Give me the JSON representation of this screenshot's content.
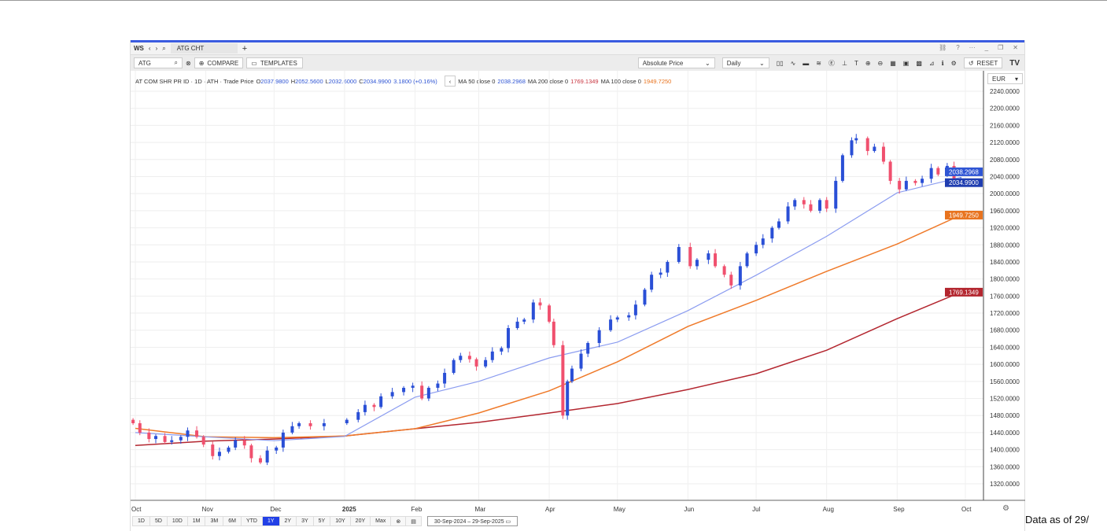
{
  "header": {
    "workspace": "WS",
    "tab": "ATG CHT",
    "new_tab": "+"
  },
  "toolbar": {
    "symbol": "ATG",
    "compare": "COMPARE",
    "templates": "TEMPLATES",
    "price_mode": "Absolute Price",
    "interval": "Daily",
    "reset": "RESET",
    "logo": "TV",
    "currency": "EUR"
  },
  "info": {
    "name": "AT COM SHR PR ID · 1D · ATH · Trade Price",
    "o_label": "O",
    "o": "2037.9800",
    "h_label": "H",
    "h": "2052.5600",
    "l_label": "L",
    "l": "2032.6000",
    "c_label": "C",
    "c": "2034.9900",
    "chg": "3.1800 (+0.16%)",
    "ma50_label": "MA 50 close 0",
    "ma50": "2038.2968",
    "ma200_label": "MA 200 close 0",
    "ma200": "1769.1349",
    "ma100_label": "MA 100 close 0",
    "ma100": "1949.7250"
  },
  "ranges": [
    "1D",
    "5D",
    "10D",
    "1M",
    "3M",
    "6M",
    "YTD",
    "1Y",
    "2Y",
    "3Y",
    "5Y",
    "10Y",
    "20Y",
    "Max"
  ],
  "active_range": "1Y",
  "date_range": "30-Sep-2024  –  29-Sep-2025",
  "footer_note": "Data as of 29/",
  "colors": {
    "up": "#2a4fd6",
    "down": "#f0506e",
    "ma50": "#8b9cf0",
    "ma100": "#ef7a2a",
    "ma200": "#b3262f"
  },
  "chart_data": {
    "type": "candlestick",
    "ylim": [
      1290,
      2260
    ],
    "yticks": [
      2240,
      2200,
      2160,
      2120,
      2080,
      2040,
      2000,
      1960,
      1920,
      1880,
      1840,
      1800,
      1760,
      1720,
      1680,
      1640,
      1600,
      1560,
      1520,
      1480,
      1440,
      1400,
      1360,
      1320
    ],
    "xticks": [
      {
        "label": "Oct",
        "date": "2024-10-01"
      },
      {
        "label": "Nov",
        "date": "2024-11-01"
      },
      {
        "label": "Dec",
        "date": "2024-12-01"
      },
      {
        "label": "2025",
        "date": "2025-01-01"
      },
      {
        "label": "Feb",
        "date": "2025-02-01"
      },
      {
        "label": "Mar",
        "date": "2025-03-01"
      },
      {
        "label": "Apr",
        "date": "2025-04-01"
      },
      {
        "label": "May",
        "date": "2025-05-01"
      },
      {
        "label": "Jun",
        "date": "2025-06-01"
      },
      {
        "label": "Jul",
        "date": "2025-07-01"
      },
      {
        "label": "Aug",
        "date": "2025-08-01"
      },
      {
        "label": "Sep",
        "date": "2025-09-01"
      },
      {
        "label": "Oct",
        "date": "2025-10-01"
      }
    ],
    "closes": [
      [
        "2024-09-30",
        1462
      ],
      [
        "2024-10-03",
        1440
      ],
      [
        "2024-10-07",
        1425
      ],
      [
        "2024-10-10",
        1432
      ],
      [
        "2024-10-14",
        1418
      ],
      [
        "2024-10-17",
        1422
      ],
      [
        "2024-10-21",
        1430
      ],
      [
        "2024-10-24",
        1445
      ],
      [
        "2024-10-28",
        1430
      ],
      [
        "2024-10-31",
        1412
      ],
      [
        "2024-11-04",
        1385
      ],
      [
        "2024-11-07",
        1395
      ],
      [
        "2024-11-11",
        1405
      ],
      [
        "2024-11-14",
        1422
      ],
      [
        "2024-11-18",
        1410
      ],
      [
        "2024-11-21",
        1380
      ],
      [
        "2024-11-25",
        1370
      ],
      [
        "2024-11-28",
        1398
      ],
      [
        "2024-12-02",
        1405
      ],
      [
        "2024-12-05",
        1440
      ],
      [
        "2024-12-09",
        1455
      ],
      [
        "2024-12-12",
        1462
      ],
      [
        "2024-12-17",
        1455
      ],
      [
        "2024-12-23",
        1462
      ],
      [
        "2025-01-02",
        1470
      ],
      [
        "2025-01-07",
        1488
      ],
      [
        "2025-01-10",
        1505
      ],
      [
        "2025-01-14",
        1500
      ],
      [
        "2025-01-17",
        1525
      ],
      [
        "2025-01-22",
        1535
      ],
      [
        "2025-01-27",
        1545
      ],
      [
        "2025-01-31",
        1550
      ],
      [
        "2025-02-04",
        1520
      ],
      [
        "2025-02-07",
        1545
      ],
      [
        "2025-02-11",
        1555
      ],
      [
        "2025-02-14",
        1580
      ],
      [
        "2025-02-18",
        1610
      ],
      [
        "2025-02-21",
        1620
      ],
      [
        "2025-02-25",
        1612
      ],
      [
        "2025-02-28",
        1595
      ],
      [
        "2025-03-04",
        1610
      ],
      [
        "2025-03-07",
        1630
      ],
      [
        "2025-03-11",
        1638
      ],
      [
        "2025-03-14",
        1685
      ],
      [
        "2025-03-18",
        1700
      ],
      [
        "2025-03-21",
        1705
      ],
      [
        "2025-03-25",
        1745
      ],
      [
        "2025-03-28",
        1738
      ],
      [
        "2025-04-01",
        1700
      ],
      [
        "2025-04-03",
        1645
      ],
      [
        "2025-04-07",
        1480
      ],
      [
        "2025-04-09",
        1560
      ],
      [
        "2025-04-11",
        1590
      ],
      [
        "2025-04-15",
        1625
      ],
      [
        "2025-04-18",
        1650
      ],
      [
        "2025-04-23",
        1680
      ],
      [
        "2025-04-28",
        1705
      ],
      [
        "2025-05-01",
        1710
      ],
      [
        "2025-05-06",
        1715
      ],
      [
        "2025-05-09",
        1740
      ],
      [
        "2025-05-13",
        1775
      ],
      [
        "2025-05-16",
        1810
      ],
      [
        "2025-05-20",
        1815
      ],
      [
        "2025-05-23",
        1840
      ],
      [
        "2025-05-28",
        1875
      ],
      [
        "2025-06-02",
        1830
      ],
      [
        "2025-06-05",
        1845
      ],
      [
        "2025-06-10",
        1860
      ],
      [
        "2025-06-13",
        1830
      ],
      [
        "2025-06-17",
        1810
      ],
      [
        "2025-06-20",
        1785
      ],
      [
        "2025-06-24",
        1830
      ],
      [
        "2025-06-27",
        1860
      ],
      [
        "2025-07-01",
        1880
      ],
      [
        "2025-07-04",
        1895
      ],
      [
        "2025-07-08",
        1920
      ],
      [
        "2025-07-11",
        1935
      ],
      [
        "2025-07-15",
        1970
      ],
      [
        "2025-07-18",
        1985
      ],
      [
        "2025-07-22",
        1975
      ],
      [
        "2025-07-25",
        1960
      ],
      [
        "2025-07-29",
        1985
      ],
      [
        "2025-08-01",
        1965
      ],
      [
        "2025-08-05",
        2030
      ],
      [
        "2025-08-08",
        2090
      ],
      [
        "2025-08-12",
        2125
      ],
      [
        "2025-08-14",
        2130
      ],
      [
        "2025-08-19",
        2100
      ],
      [
        "2025-08-22",
        2110
      ],
      [
        "2025-08-26",
        2075
      ],
      [
        "2025-08-29",
        2030
      ],
      [
        "2025-09-02",
        2010
      ],
      [
        "2025-09-05",
        2030
      ],
      [
        "2025-09-09",
        2025
      ],
      [
        "2025-09-12",
        2035
      ],
      [
        "2025-09-16",
        2060
      ],
      [
        "2025-09-19",
        2045
      ],
      [
        "2025-09-23",
        2065
      ],
      [
        "2025-09-26",
        2033
      ],
      [
        "2025-09-29",
        2035
      ]
    ],
    "ma50": [
      [
        "2024-10-01",
        1440
      ],
      [
        "2024-11-01",
        1430
      ],
      [
        "2024-12-01",
        1421
      ],
      [
        "2025-01-01",
        1431
      ],
      [
        "2025-02-01",
        1523
      ],
      [
        "2025-03-01",
        1560
      ],
      [
        "2025-04-01",
        1615
      ],
      [
        "2025-05-01",
        1652
      ],
      [
        "2025-06-01",
        1726
      ],
      [
        "2025-07-01",
        1809
      ],
      [
        "2025-08-01",
        1900
      ],
      [
        "2025-09-01",
        2002
      ],
      [
        "2025-09-29",
        2038.2968
      ]
    ],
    "ma100": [
      [
        "2024-10-01",
        1450
      ],
      [
        "2024-11-01",
        1430
      ],
      [
        "2024-12-01",
        1428
      ],
      [
        "2025-01-01",
        1432
      ],
      [
        "2025-02-01",
        1449
      ],
      [
        "2025-03-01",
        1486
      ],
      [
        "2025-04-01",
        1538
      ],
      [
        "2025-05-01",
        1606
      ],
      [
        "2025-06-01",
        1689
      ],
      [
        "2025-07-01",
        1750
      ],
      [
        "2025-08-01",
        1818
      ],
      [
        "2025-09-01",
        1882
      ],
      [
        "2025-09-29",
        1949.725
      ]
    ],
    "ma200": [
      [
        "2024-10-01",
        1410
      ],
      [
        "2024-11-01",
        1420
      ],
      [
        "2024-12-01",
        1425
      ],
      [
        "2025-01-01",
        1432
      ],
      [
        "2025-02-01",
        1449
      ],
      [
        "2025-03-01",
        1464
      ],
      [
        "2025-04-01",
        1486
      ],
      [
        "2025-05-01",
        1508
      ],
      [
        "2025-06-01",
        1541
      ],
      [
        "2025-07-01",
        1578
      ],
      [
        "2025-08-01",
        1633
      ],
      [
        "2025-09-01",
        1707
      ],
      [
        "2025-09-29",
        1769.1349
      ]
    ],
    "price_labels": [
      {
        "text": "2038.2968",
        "color": "#2f55d4"
      },
      {
        "text": "2034.9900",
        "color": "#1f3db0"
      },
      {
        "text": "1949.7250",
        "color": "#e8731e"
      },
      {
        "text": "1769.1349",
        "color": "#b3262f"
      }
    ]
  }
}
